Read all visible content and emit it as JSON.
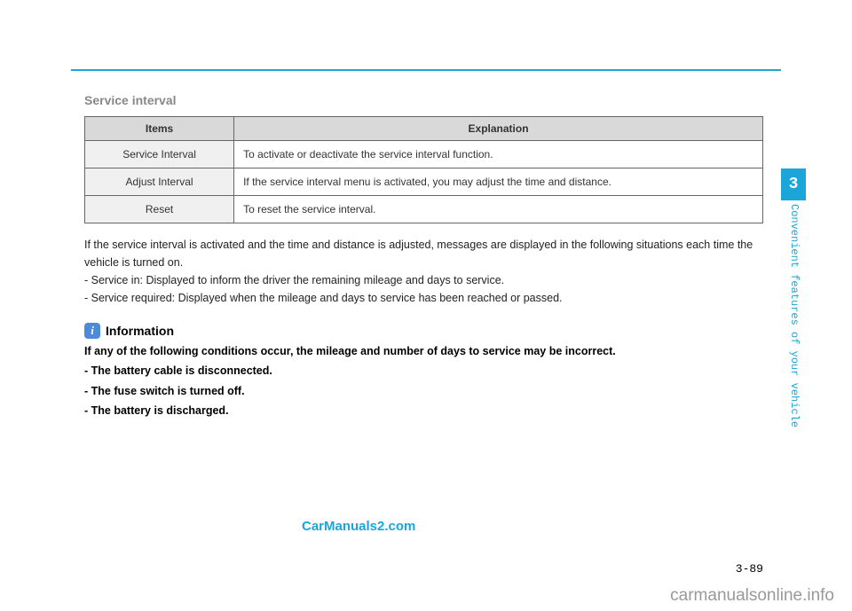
{
  "section_title": "Service interval",
  "table": {
    "headers": [
      "Items",
      "Explanation"
    ],
    "rows": [
      {
        "item": "Service Interval",
        "explanation": "To activate or deactivate the service interval function."
      },
      {
        "item": "Adjust Interval",
        "explanation": "If the service interval menu is activated, you may adjust the time and distance."
      },
      {
        "item": "Reset",
        "explanation": "To reset the service interval."
      }
    ]
  },
  "body": {
    "p1": "If the service interval is activated and the time and distance is adjusted, messages are displayed in the following situations each time the vehicle is turned on.",
    "b1": "- Service in: Displayed to inform the driver the remaining mileage and days to service.",
    "b2": "- Service required: Displayed when the mileage and days to service has been reached or passed."
  },
  "info": {
    "icon_glyph": "i",
    "title": "Information",
    "lead": "If any of the following conditions occur, the mileage and number of days to service may be incorrect.",
    "c1": "- The battery cable is disconnected.",
    "c2": "- The fuse switch is turned off.",
    "c3": "- The battery is discharged."
  },
  "watermarks": {
    "blue": "CarManuals2.com",
    "gray": "carmanualsonline.info"
  },
  "page_number": "3-89",
  "side_tab": "3",
  "side_label": "Convenient features of your vehicle"
}
